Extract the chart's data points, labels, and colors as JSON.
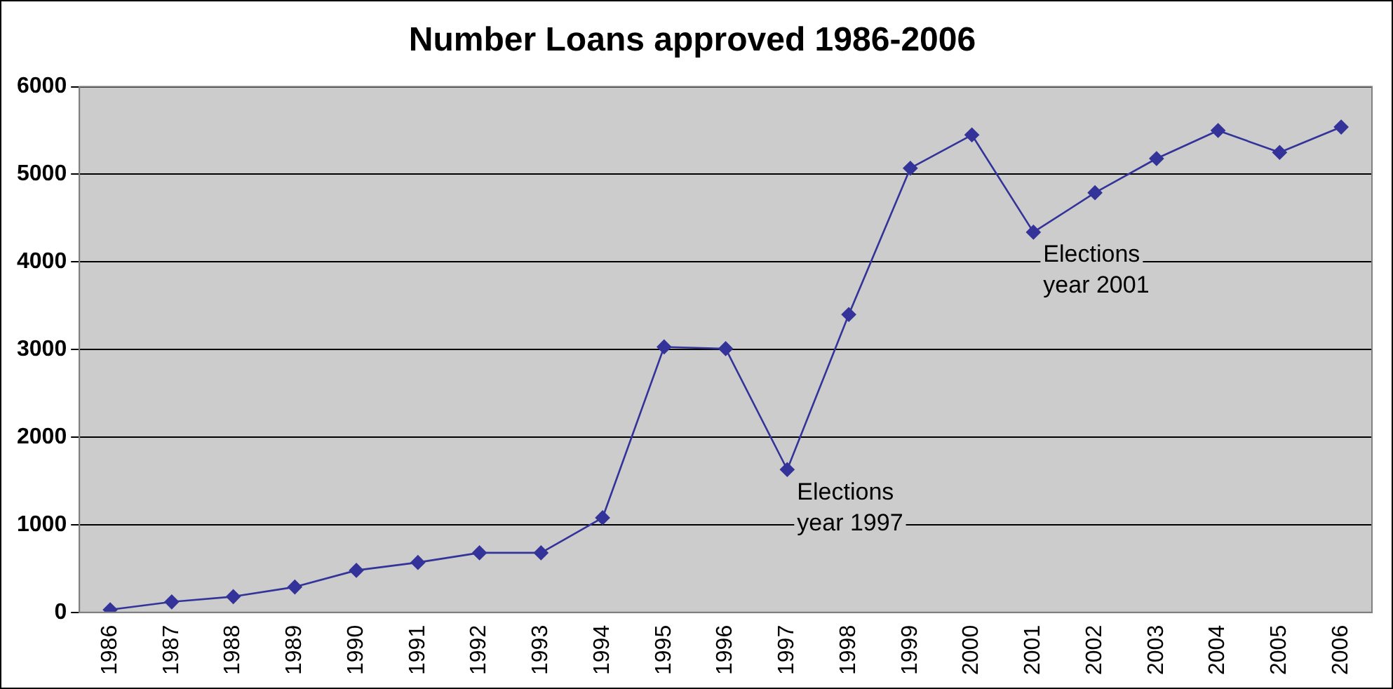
{
  "chart_data": {
    "type": "line",
    "title": "Number Loans approved 1986-2006",
    "categories": [
      "1986",
      "1987",
      "1988",
      "1989",
      "1990",
      "1991",
      "1992",
      "1993",
      "1994",
      "1995",
      "1996",
      "1997",
      "1998",
      "1999",
      "2000",
      "2001",
      "2002",
      "2003",
      "2004",
      "2005",
      "2006"
    ],
    "series": [
      {
        "color": "#333399",
        "values": [
          30,
          120,
          180,
          290,
          480,
          570,
          680,
          680,
          1080,
          3030,
          3010,
          1630,
          3400,
          5070,
          5450,
          4340,
          4790,
          5180,
          5500,
          5250,
          5540
        ]
      }
    ],
    "ylim": [
      0,
      6000
    ],
    "yticks": [
      0,
      1000,
      2000,
      3000,
      4000,
      5000,
      6000
    ],
    "grid": "y",
    "legend": false,
    "marker": "diamond",
    "line_style": "solid",
    "annotations": [
      {
        "text": "Elections\nyear 1997",
        "x": "1997",
        "y": 1630
      },
      {
        "text": "Elections\nyear 2001",
        "x": "2001",
        "y": 4340
      }
    ]
  }
}
